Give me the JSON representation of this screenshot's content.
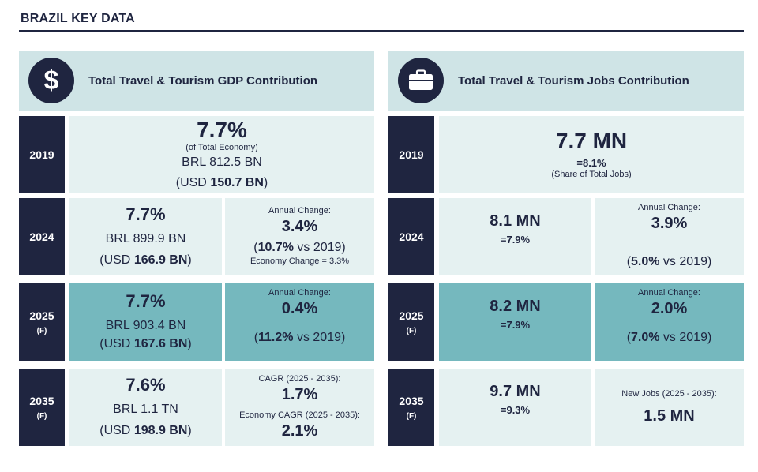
{
  "page_title": "BRAZIL KEY DATA",
  "gdp": {
    "title": "Total Travel & Tourism GDP Contribution",
    "icon": "dollar-icon",
    "rows": [
      {
        "year": "2019",
        "forecast": "",
        "share": "7.7%",
        "share_note": "(of Total Economy)",
        "local": "BRL 812.5 BN",
        "usd_prefix": "(USD ",
        "usd_value": "150.7 BN",
        "usd_suffix": ")"
      },
      {
        "year": "2024",
        "forecast": "",
        "share": "7.7%",
        "local": "BRL 899.9 BN",
        "usd_prefix": "(USD ",
        "usd_value": "166.9 BN",
        "usd_suffix": ")",
        "change_label": "Annual Change:",
        "change_value": "3.4%",
        "vs_value": "10.7%",
        "vs_text": " vs 2019)",
        "vs_open": "(",
        "economy_note": "Economy Change = 3.3%"
      },
      {
        "year": "2025",
        "forecast": "(F)",
        "share": "7.7%",
        "local": "BRL 903.4 BN",
        "usd_prefix": "(USD ",
        "usd_value": "167.6 BN",
        "usd_suffix": ")",
        "change_label": "Annual Change:",
        "change_value": "0.4%",
        "vs_value": "11.2%",
        "vs_text": " vs 2019)",
        "vs_open": "("
      },
      {
        "year": "2035",
        "forecast": "(F)",
        "share": "7.6%",
        "local": "BRL 1.1 TN",
        "usd_prefix": "(USD ",
        "usd_value": "198.9 BN",
        "usd_suffix": ")",
        "cagr_label": "CAGR (2025 - 2035):",
        "cagr_value": "1.7%",
        "economy_cagr_label": "Economy CAGR (2025 - 2035):",
        "economy_cagr_value": "2.1%"
      }
    ]
  },
  "jobs": {
    "title": "Total Travel & Tourism Jobs Contribution",
    "icon": "briefcase-icon",
    "rows": [
      {
        "year": "2019",
        "forecast": "",
        "jobs": "7.7 MN",
        "share": "=8.1%",
        "share_note": "(Share of Total Jobs)"
      },
      {
        "year": "2024",
        "forecast": "",
        "jobs": "8.1 MN",
        "share": "=7.9%",
        "change_label": "Annual Change:",
        "change_value": "3.9%",
        "vs_open": "(",
        "vs_value": "5.0%",
        "vs_text": " vs 2019)"
      },
      {
        "year": "2025",
        "forecast": "(F)",
        "jobs": "8.2 MN",
        "share": "=7.9%",
        "change_label": "Annual Change:",
        "change_value": "2.0%",
        "vs_open": "(",
        "vs_value": "7.0%",
        "vs_text": " vs 2019)"
      },
      {
        "year": "2035",
        "forecast": "(F)",
        "jobs": "9.7 MN",
        "share": "=9.3%",
        "new_jobs_label": "New Jobs (2025 - 2035):",
        "new_jobs_value": "1.5 MN"
      }
    ]
  },
  "colors": {
    "navy": "#1f2540",
    "light": "#e5f1f1",
    "teal": "#75b8be",
    "header": "#cfe4e6"
  }
}
